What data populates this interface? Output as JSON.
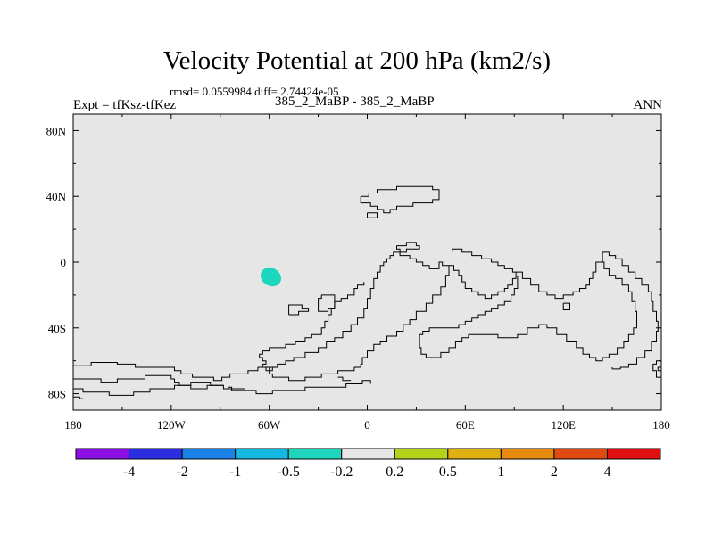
{
  "header": {
    "title": "Velocity Potential at 200 hPa (km2/s)",
    "stats": "rmsd= 0.0559984 diff= 2.74424e-05",
    "left": "Expt = tfKsz-tfKez",
    "center": "385_2_MaBP - 385_2_MaBP",
    "right": "ANN"
  },
  "chart_data": {
    "type": "contour-map",
    "title": "Velocity Potential at 200 hPa (km2/s)",
    "subtitle": "385_2_MaBP - 385_2_MaBP",
    "xlim": [
      180,
      540
    ],
    "ylim": [
      -90,
      90
    ],
    "x_ticks": [
      {
        "value": 180,
        "label": "180"
      },
      {
        "value": 240,
        "label": "120W"
      },
      {
        "value": 300,
        "label": "60W"
      },
      {
        "value": 360,
        "label": "0"
      },
      {
        "value": 420,
        "label": "60E"
      },
      {
        "value": 480,
        "label": "120E"
      },
      {
        "value": 540,
        "label": "180"
      }
    ],
    "y_ticks": [
      {
        "value": 80,
        "label": "80N"
      },
      {
        "value": 40,
        "label": "40N"
      },
      {
        "value": 0,
        "label": "0"
      },
      {
        "value": -40,
        "label": "40S"
      },
      {
        "value": -80,
        "label": "80S"
      }
    ],
    "field_color": "#e6e6e6",
    "anomalies": [
      {
        "name": "weak-negative",
        "lon": 301,
        "lat": -9,
        "color": "#1ed6bd",
        "value_range": [
          -0.5,
          -0.2
        ]
      }
    ],
    "colorbar": {
      "levels": [
        "-4",
        "-2",
        "-1",
        "-0.5",
        "-0.2",
        "0.2",
        "0.5",
        "1",
        "2",
        "4"
      ],
      "colors": [
        "#8c10e6",
        "#2a2ee0",
        "#1a82e6",
        "#15b8e0",
        "#1ed6bd",
        "#e6e6e6",
        "#b6d11a",
        "#e0b010",
        "#e68a10",
        "#e04a10",
        "#e01010"
      ]
    },
    "coastlines": [
      [
        [
          180,
          -63
        ],
        [
          190,
          -63
        ],
        [
          191,
          -61
        ],
        [
          205,
          -61
        ],
        [
          207,
          -62
        ],
        [
          216,
          -62
        ],
        [
          218,
          -64
        ],
        [
          240,
          -64
        ],
        [
          242,
          -66
        ],
        [
          245,
          -66
        ],
        [
          246,
          -68
        ],
        [
          252,
          -68
        ],
        [
          253,
          -70
        ],
        [
          265,
          -70
        ],
        [
          266,
          -72
        ],
        [
          270,
          -72
        ],
        [
          271,
          -70
        ],
        [
          275,
          -70
        ],
        [
          276,
          -68
        ],
        [
          285,
          -68
        ],
        [
          287,
          -66
        ],
        [
          292,
          -66
        ],
        [
          293,
          -64
        ]
      ],
      [
        [
          180,
          -71
        ],
        [
          195,
          -71
        ],
        [
          197,
          -73
        ],
        [
          205,
          -73
        ],
        [
          207,
          -71
        ],
        [
          222,
          -71
        ],
        [
          224,
          -69
        ],
        [
          238,
          -69
        ],
        [
          240,
          -71
        ],
        [
          242,
          -73
        ],
        [
          245,
          -75
        ],
        [
          250,
          -75
        ],
        [
          252,
          -77
        ],
        [
          260,
          -77
        ],
        [
          262,
          -75
        ],
        [
          270,
          -75
        ],
        [
          272,
          -77
        ],
        [
          285,
          -77
        ]
      ],
      [
        [
          180,
          -77
        ],
        [
          185,
          -77
        ],
        [
          186,
          -79
        ],
        [
          200,
          -79
        ],
        [
          202,
          -81
        ],
        [
          215,
          -81
        ],
        [
          217,
          -79
        ],
        [
          225,
          -79
        ],
        [
          227,
          -77
        ],
        [
          240,
          -77
        ],
        [
          242,
          -75
        ],
        [
          250,
          -75
        ],
        [
          252,
          -73
        ],
        [
          262,
          -73
        ],
        [
          264,
          -75
        ],
        [
          272,
          -75
        ]
      ],
      [
        [
          180,
          -82
        ],
        [
          183,
          -82
        ],
        [
          184,
          -83
        ],
        [
          186,
          -83
        ]
      ],
      [
        [
          275,
          -76
        ],
        [
          277,
          -78
        ],
        [
          290,
          -78
        ],
        [
          292,
          -80
        ],
        [
          300,
          -80
        ],
        [
          302,
          -78
        ],
        [
          320,
          -78
        ],
        [
          322,
          -76
        ],
        [
          345,
          -76
        ],
        [
          347,
          -74
        ],
        [
          355,
          -74
        ],
        [
          357,
          -72
        ],
        [
          360,
          -72
        ],
        [
          362,
          -74
        ]
      ],
      [
        [
          293,
          -64
        ],
        [
          300,
          -64
        ],
        [
          302,
          -66
        ],
        [
          300,
          -68
        ],
        [
          302,
          -70
        ],
        [
          310,
          -70
        ],
        [
          312,
          -72
        ],
        [
          320,
          -72
        ],
        [
          322,
          -70
        ],
        [
          330,
          -70
        ],
        [
          332,
          -68
        ],
        [
          340,
          -68
        ],
        [
          342,
          -66
        ],
        [
          350,
          -66
        ],
        [
          352,
          -64
        ]
      ],
      [
        [
          352,
          -64
        ],
        [
          356,
          -62
        ],
        [
          357,
          -58
        ],
        [
          360,
          -54
        ],
        [
          364,
          -50
        ],
        [
          368,
          -48
        ],
        [
          372,
          -45
        ],
        [
          378,
          -42
        ],
        [
          382,
          -38
        ],
        [
          386,
          -35
        ],
        [
          390,
          -30
        ],
        [
          396,
          -25
        ],
        [
          400,
          -20
        ],
        [
          405,
          -15
        ],
        [
          408,
          -8
        ],
        [
          410,
          -2
        ],
        [
          406,
          0
        ],
        [
          404,
          -4
        ],
        [
          398,
          -2
        ],
        [
          394,
          0
        ],
        [
          390,
          2
        ],
        [
          386,
          4
        ],
        [
          380,
          6
        ],
        [
          376,
          4
        ],
        [
          374,
          2
        ],
        [
          372,
          0
        ],
        [
          370,
          -2
        ],
        [
          368,
          -6
        ],
        [
          366,
          -10
        ],
        [
          364,
          -16
        ],
        [
          362,
          -22
        ],
        [
          360,
          -28
        ],
        [
          358,
          -34
        ],
        [
          354,
          -38
        ],
        [
          350,
          -42
        ],
        [
          345,
          -46
        ],
        [
          340,
          -48
        ],
        [
          335,
          -52
        ],
        [
          330,
          -55
        ],
        [
          322,
          -58
        ],
        [
          315,
          -60
        ],
        [
          310,
          -62
        ],
        [
          305,
          -64
        ],
        [
          300,
          -66
        ],
        [
          298,
          -64
        ],
        [
          296,
          -62
        ],
        [
          298,
          -60
        ],
        [
          296,
          -58
        ],
        [
          294,
          -56
        ],
        [
          296,
          -54
        ],
        [
          300,
          -52
        ],
        [
          306,
          -52
        ],
        [
          310,
          -50
        ],
        [
          316,
          -48
        ],
        [
          322,
          -46
        ],
        [
          326,
          -44
        ],
        [
          332,
          -40
        ],
        [
          334,
          -36
        ],
        [
          336,
          -32
        ],
        [
          338,
          -28
        ],
        [
          340,
          -24
        ],
        [
          344,
          -22
        ],
        [
          348,
          -20
        ],
        [
          352,
          -16
        ],
        [
          354,
          -14
        ],
        [
          358,
          -12
        ]
      ],
      [
        [
          410,
          -2
        ],
        [
          413,
          -5
        ],
        [
          416,
          -8
        ],
        [
          418,
          -12
        ],
        [
          420,
          -16
        ],
        [
          424,
          -18
        ],
        [
          428,
          -20
        ],
        [
          432,
          -22
        ],
        [
          436,
          -20
        ],
        [
          440,
          -18
        ],
        [
          444,
          -16
        ],
        [
          446,
          -14
        ],
        [
          449,
          -10
        ],
        [
          451,
          -6
        ],
        [
          449,
          -4
        ],
        [
          444,
          -2
        ],
        [
          440,
          0
        ],
        [
          436,
          2
        ],
        [
          430,
          4
        ],
        [
          424,
          6
        ],
        [
          418,
          8
        ],
        [
          412,
          6
        ]
      ],
      [
        [
          451,
          -6
        ],
        [
          455,
          -10
        ],
        [
          460,
          -14
        ],
        [
          465,
          -18
        ],
        [
          470,
          -20
        ],
        [
          475,
          -22
        ],
        [
          480,
          -20
        ],
        [
          486,
          -18
        ],
        [
          490,
          -16
        ],
        [
          494,
          -14
        ],
        [
          496,
          -10
        ],
        [
          498,
          -6
        ],
        [
          500,
          0
        ],
        [
          505,
          -4
        ],
        [
          508,
          -8
        ],
        [
          512,
          -10
        ],
        [
          516,
          -14
        ],
        [
          520,
          -18
        ],
        [
          522,
          -24
        ],
        [
          524,
          -30
        ],
        [
          525,
          -36
        ],
        [
          525,
          -40
        ],
        [
          523,
          -44
        ],
        [
          520,
          -48
        ],
        [
          517,
          -52
        ],
        [
          513,
          -56
        ],
        [
          508,
          -58
        ],
        [
          504,
          -60
        ],
        [
          500,
          -58
        ],
        [
          496,
          -56
        ],
        [
          492,
          -52
        ],
        [
          488,
          -48
        ],
        [
          482,
          -44
        ],
        [
          476,
          -40
        ],
        [
          470,
          -38
        ],
        [
          465,
          -40
        ],
        [
          458,
          -44
        ],
        [
          452,
          -46
        ],
        [
          446,
          -46
        ],
        [
          440,
          -44
        ],
        [
          434,
          -44
        ],
        [
          428,
          -44
        ],
        [
          422,
          -46
        ],
        [
          418,
          -48
        ],
        [
          414,
          -52
        ],
        [
          410,
          -55
        ],
        [
          405,
          -58
        ],
        [
          400,
          -58
        ],
        [
          396,
          -56
        ],
        [
          393,
          -52
        ],
        [
          392,
          -48
        ],
        [
          392,
          -44
        ],
        [
          394,
          -42
        ],
        [
          398,
          -40
        ],
        [
          404,
          -40
        ],
        [
          410,
          -40
        ],
        [
          416,
          -38
        ],
        [
          420,
          -36
        ],
        [
          424,
          -34
        ],
        [
          428,
          -32
        ],
        [
          432,
          -30
        ],
        [
          436,
          -28
        ],
        [
          440,
          -26
        ],
        [
          444,
          -24
        ],
        [
          448,
          -20
        ],
        [
          450,
          -16
        ],
        [
          452,
          -12
        ],
        [
          452,
          -8
        ]
      ],
      [
        [
          500,
          0
        ],
        [
          504,
          6
        ],
        [
          508,
          4
        ],
        [
          512,
          2
        ],
        [
          516,
          -2
        ],
        [
          520,
          -6
        ],
        [
          524,
          -10
        ],
        [
          528,
          -14
        ],
        [
          532,
          -18
        ],
        [
          534,
          -24
        ],
        [
          535,
          -30
        ],
        [
          537,
          -36
        ],
        [
          538,
          -42
        ],
        [
          537,
          -48
        ],
        [
          534,
          -54
        ],
        [
          530,
          -58
        ],
        [
          525,
          -62
        ],
        [
          520,
          -64
        ],
        [
          515,
          -65
        ],
        [
          510,
          -64
        ]
      ],
      [
        [
          540,
          -60
        ],
        [
          537,
          -62
        ],
        [
          535,
          -66
        ],
        [
          537,
          -70
        ],
        [
          540,
          -74
        ]
      ],
      [
        [
          540,
          -64
        ],
        [
          538,
          -66
        ],
        [
          540,
          -68
        ]
      ],
      [
        [
          342,
          -70
        ],
        [
          345,
          -72
        ],
        [
          350,
          -72
        ]
      ],
      [
        [
          356,
          40
        ],
        [
          361,
          42
        ],
        [
          366,
          44
        ],
        [
          372,
          44
        ],
        [
          378,
          46
        ],
        [
          386,
          46
        ],
        [
          394,
          46
        ],
        [
          400,
          44
        ],
        [
          404,
          42
        ],
        [
          404,
          38
        ],
        [
          400,
          36
        ],
        [
          394,
          36
        ],
        [
          388,
          34
        ],
        [
          382,
          34
        ],
        [
          378,
          32
        ],
        [
          374,
          30
        ],
        [
          370,
          32
        ],
        [
          366,
          34
        ],
        [
          362,
          36
        ],
        [
          358,
          36
        ],
        [
          356,
          38
        ],
        [
          356,
          40
        ]
      ],
      [
        [
          360,
          30
        ],
        [
          366,
          30
        ],
        [
          366,
          27
        ],
        [
          360,
          27
        ],
        [
          360,
          30
        ]
      ],
      [
        [
          378,
          10
        ],
        [
          382,
          10
        ],
        [
          384,
          12
        ],
        [
          388,
          12
        ],
        [
          390,
          10
        ],
        [
          392,
          10
        ],
        [
          392,
          8
        ],
        [
          388,
          8
        ],
        [
          384,
          6
        ],
        [
          380,
          8
        ],
        [
          378,
          10
        ]
      ],
      [
        [
          332,
          -20
        ],
        [
          338,
          -20
        ],
        [
          340,
          -24
        ],
        [
          340,
          -28
        ],
        [
          336,
          -30
        ],
        [
          332,
          -30
        ],
        [
          330,
          -26
        ],
        [
          330,
          -22
        ],
        [
          332,
          -20
        ]
      ],
      [
        [
          312,
          -32
        ],
        [
          318,
          -30
        ],
        [
          322,
          -30
        ],
        [
          324,
          -28
        ],
        [
          320,
          -26
        ],
        [
          316,
          -26
        ],
        [
          312,
          -28
        ],
        [
          312,
          -32
        ]
      ],
      [
        [
          480,
          -25
        ],
        [
          484,
          -25
        ],
        [
          484,
          -29
        ],
        [
          480,
          -29
        ],
        [
          480,
          -25
        ]
      ]
    ]
  }
}
